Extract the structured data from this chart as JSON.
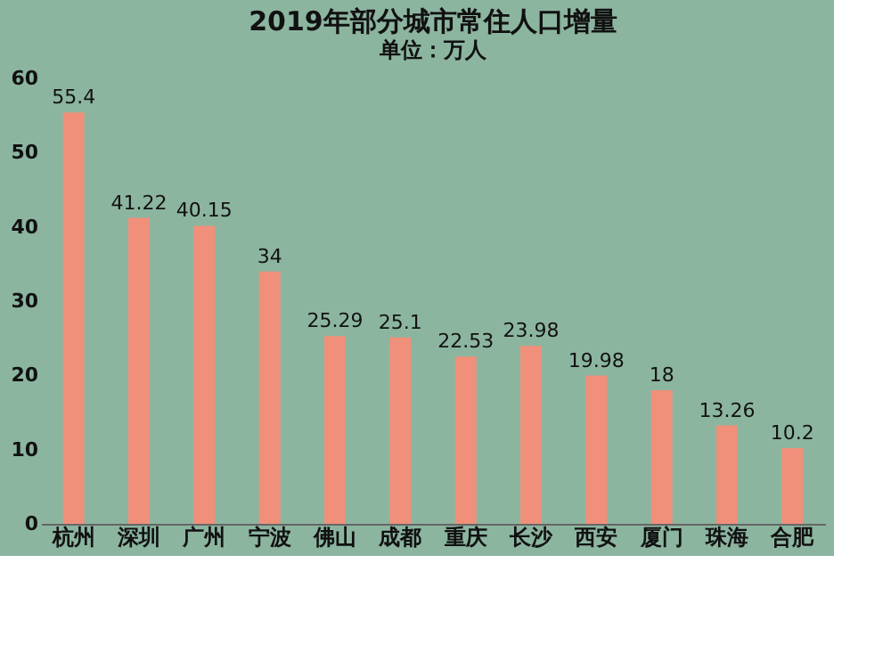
{
  "chart_data": {
    "type": "bar",
    "title": "2019年部分城市常住人口增量",
    "subtitle": "单位：万人",
    "categories": [
      "杭州",
      "深圳",
      "广州",
      "宁波",
      "佛山",
      "成都",
      "重庆",
      "长沙",
      "西安",
      "厦门",
      "珠海",
      "合肥"
    ],
    "values": [
      55.4,
      41.22,
      40.15,
      34,
      25.29,
      25.1,
      22.53,
      23.98,
      19.98,
      18,
      13.26,
      10.2
    ],
    "color": "#f0907a",
    "ylim": [
      0,
      60
    ],
    "yticks": [
      0,
      10,
      20,
      30,
      40,
      50,
      60
    ],
    "grid": false,
    "data_labels": true
  }
}
